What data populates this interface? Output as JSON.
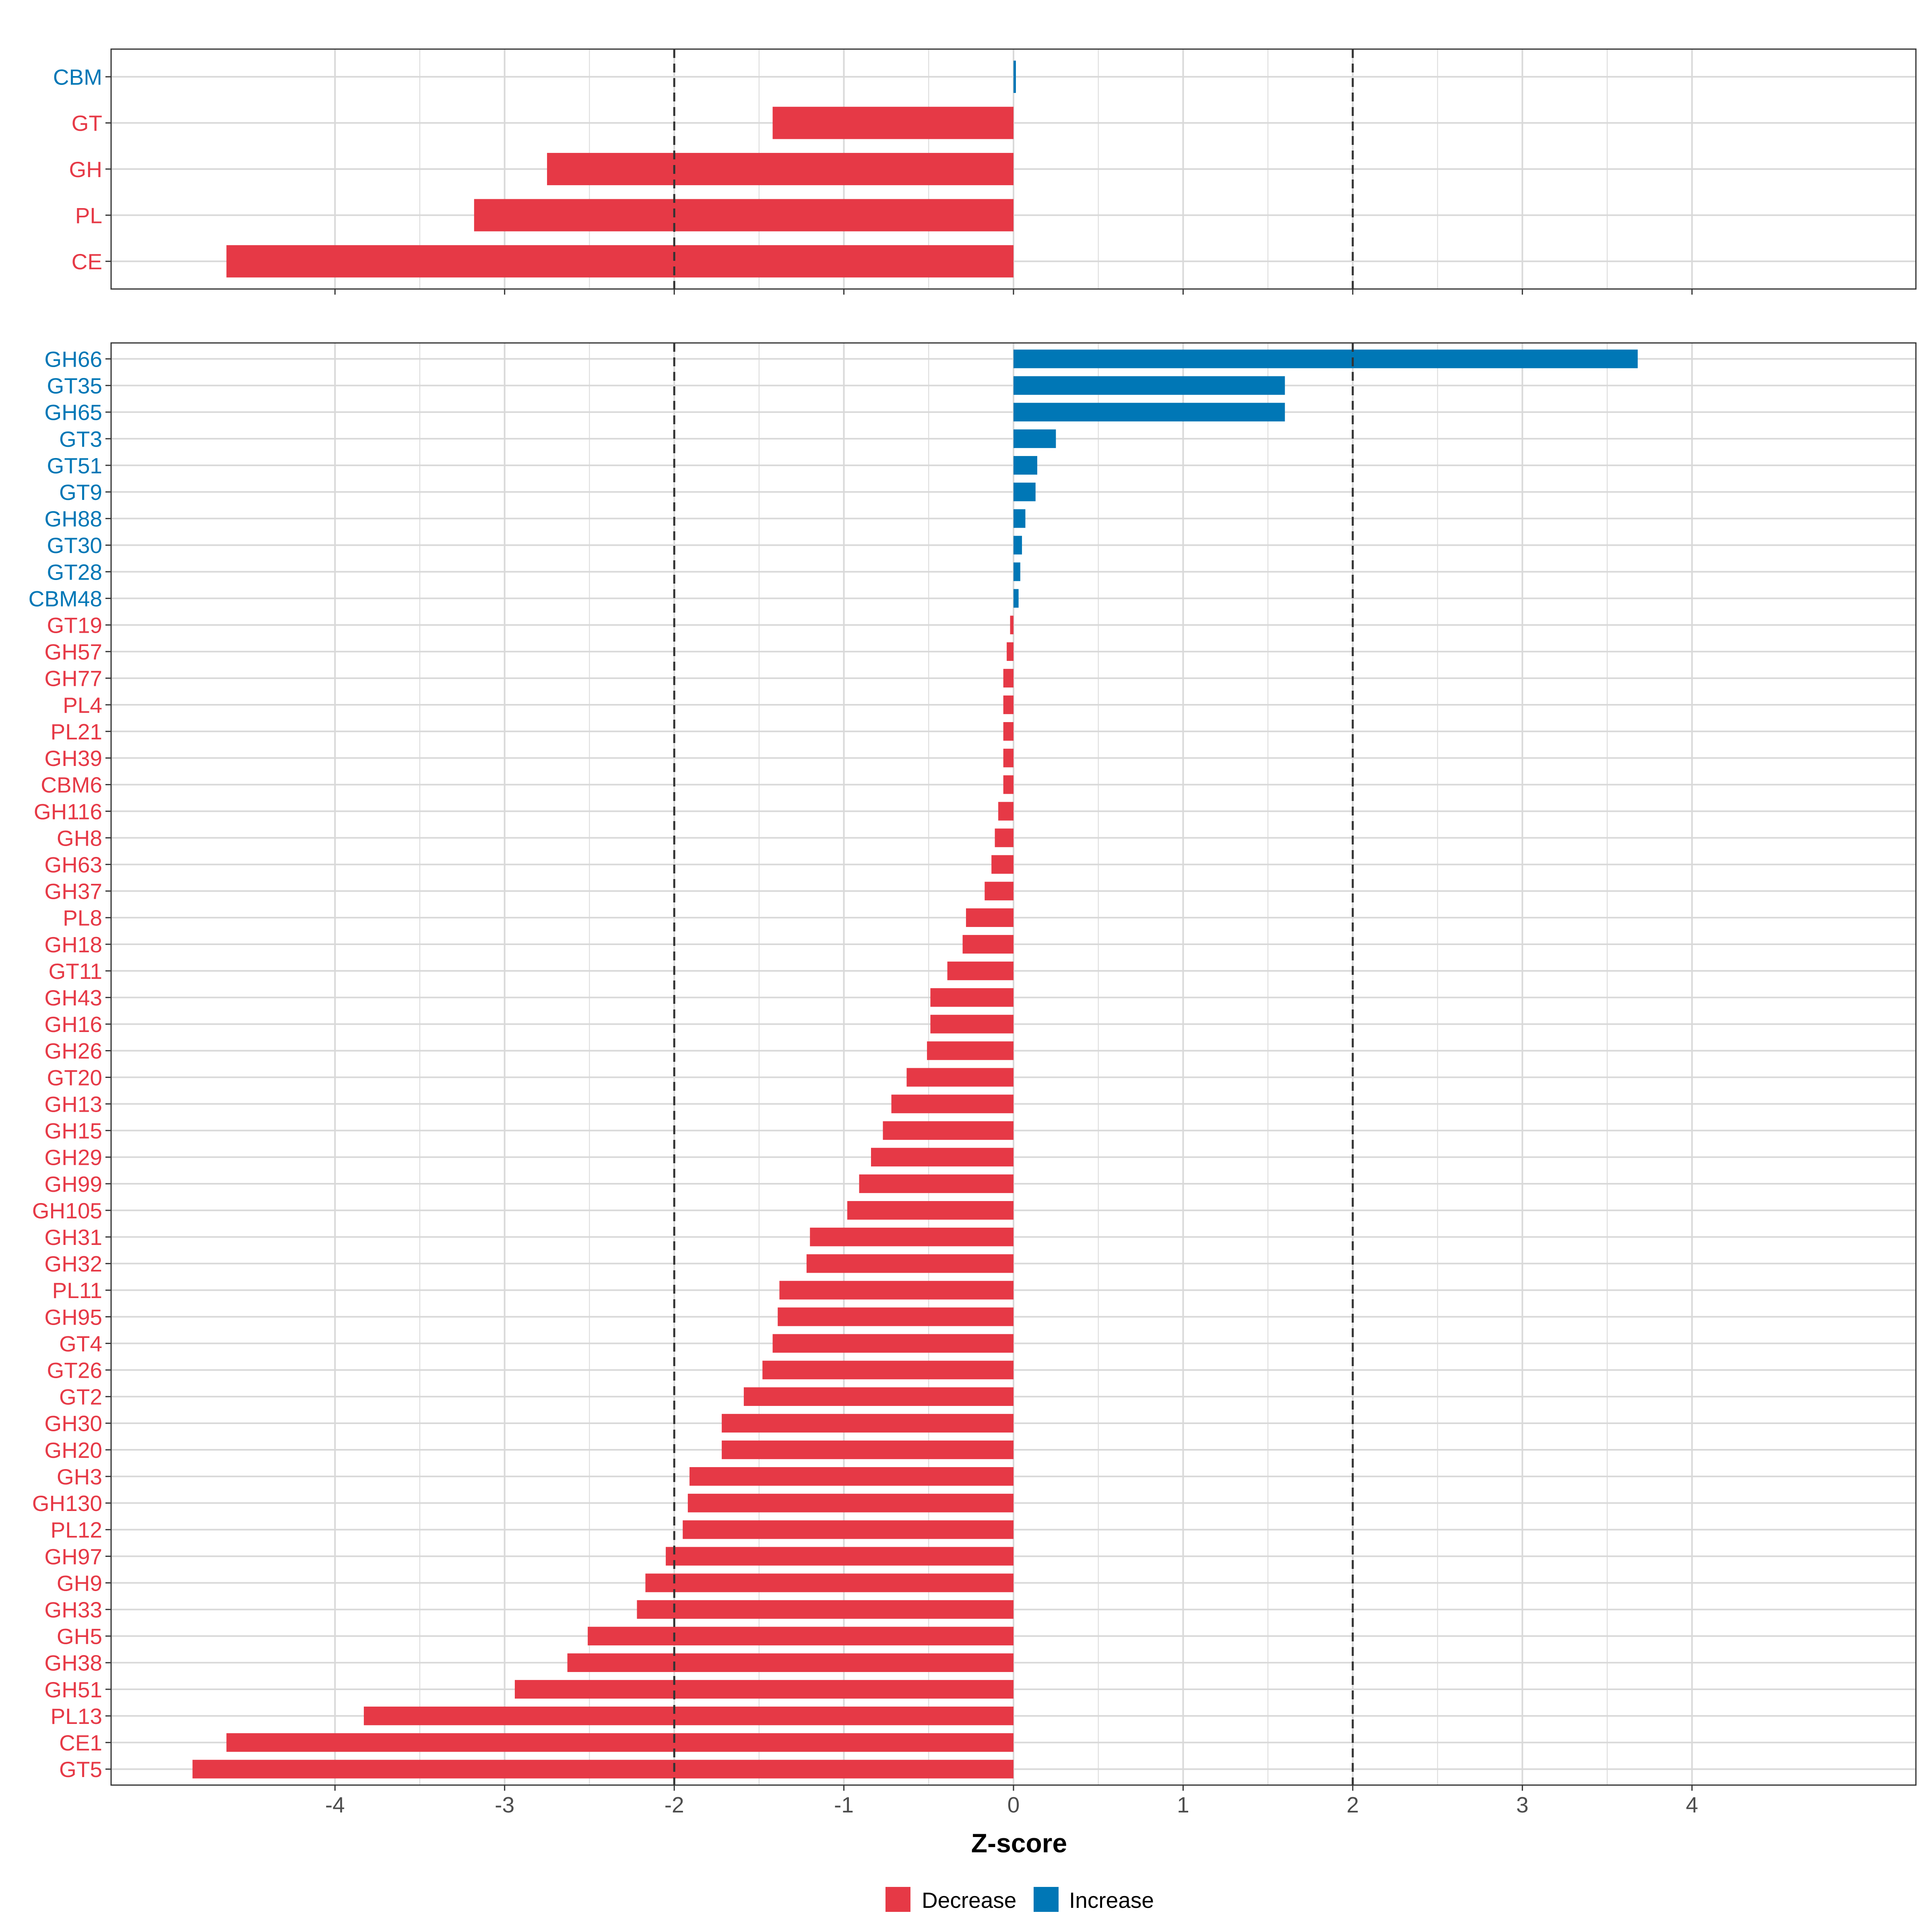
{
  "colors": {
    "decrease": "#E63946",
    "increase": "#0077B6",
    "grid": "#D9D9D9",
    "panel_border": "#333333",
    "axis_text": "#4D4D4D",
    "title_text": "#000000",
    "threshold": "#333333"
  },
  "chart_data": [
    {
      "id": "top-panel",
      "type": "bar",
      "orientation": "horizontal",
      "categories": [
        "CBM",
        "GT",
        "GH",
        "PL",
        "CE"
      ],
      "values": [
        0.01,
        -1.42,
        -2.75,
        -3.18,
        -4.64
      ],
      "direction": [
        "Increase",
        "Decrease",
        "Decrease",
        "Decrease",
        "Decrease"
      ],
      "xlim": [
        -5.32,
        5.32
      ],
      "thresholds": [
        -2,
        2
      ],
      "grid": true
    },
    {
      "id": "bottom-panel",
      "type": "bar",
      "orientation": "horizontal",
      "categories": [
        "GH66",
        "GT35",
        "GH65",
        "GT3",
        "GT51",
        "GT9",
        "GH88",
        "GT30",
        "GT28",
        "CBM48",
        "GT19",
        "GH57",
        "GH77",
        "PL4",
        "PL21",
        "GH39",
        "CBM6",
        "GH116",
        "GH8",
        "GH63",
        "GH37",
        "PL8",
        "GH18",
        "GT11",
        "GH43",
        "GH16",
        "GH26",
        "GT20",
        "GH13",
        "GH15",
        "GH29",
        "GH99",
        "GH105",
        "GH31",
        "GH32",
        "PL11",
        "GH95",
        "GT4",
        "GT26",
        "GT2",
        "GH30",
        "GH20",
        "GH3",
        "GH130",
        "PL12",
        "GH97",
        "GH9",
        "GH33",
        "GH5",
        "GH38",
        "GH51",
        "PL13",
        "CE1",
        "GT5"
      ],
      "values": [
        3.68,
        1.6,
        1.6,
        0.25,
        0.14,
        0.13,
        0.07,
        0.05,
        0.04,
        0.03,
        -0.02,
        -0.04,
        -0.06,
        -0.06,
        -0.06,
        -0.06,
        -0.06,
        -0.09,
        -0.11,
        -0.13,
        -0.17,
        -0.28,
        -0.3,
        -0.39,
        -0.49,
        -0.49,
        -0.51,
        -0.63,
        -0.72,
        -0.77,
        -0.84,
        -0.91,
        -0.98,
        -1.2,
        -1.22,
        -1.38,
        -1.39,
        -1.42,
        -1.48,
        -1.59,
        -1.72,
        -1.72,
        -1.91,
        -1.92,
        -1.95,
        -2.05,
        -2.17,
        -2.22,
        -2.51,
        -2.63,
        -2.94,
        -3.83,
        -4.64,
        -4.84
      ],
      "direction": [
        "Increase",
        "Increase",
        "Increase",
        "Increase",
        "Increase",
        "Increase",
        "Increase",
        "Increase",
        "Increase",
        "Increase",
        "Decrease",
        "Decrease",
        "Decrease",
        "Decrease",
        "Decrease",
        "Decrease",
        "Decrease",
        "Decrease",
        "Decrease",
        "Decrease",
        "Decrease",
        "Decrease",
        "Decrease",
        "Decrease",
        "Decrease",
        "Decrease",
        "Decrease",
        "Decrease",
        "Decrease",
        "Decrease",
        "Decrease",
        "Decrease",
        "Decrease",
        "Decrease",
        "Decrease",
        "Decrease",
        "Decrease",
        "Decrease",
        "Decrease",
        "Decrease",
        "Decrease",
        "Decrease",
        "Decrease",
        "Decrease",
        "Decrease",
        "Decrease",
        "Decrease",
        "Decrease",
        "Decrease",
        "Decrease",
        "Decrease",
        "Decrease",
        "Decrease",
        "Decrease"
      ],
      "xlim": [
        -5.32,
        5.32
      ],
      "thresholds": [
        -2,
        2
      ],
      "grid": true
    }
  ],
  "axis": {
    "xticks": [
      -4,
      -3,
      -2,
      -1,
      0,
      1,
      2,
      3,
      4
    ],
    "xtick_labels": [
      "-4",
      "-3",
      "-2",
      "-1",
      "0",
      "1",
      "2",
      "3",
      "4"
    ],
    "xlabel": "Z-score"
  },
  "legend": {
    "placement": "bottom",
    "items": [
      {
        "label": "Decrease",
        "color": "#E63946"
      },
      {
        "label": "Increase",
        "color": "#0077B6"
      }
    ]
  }
}
